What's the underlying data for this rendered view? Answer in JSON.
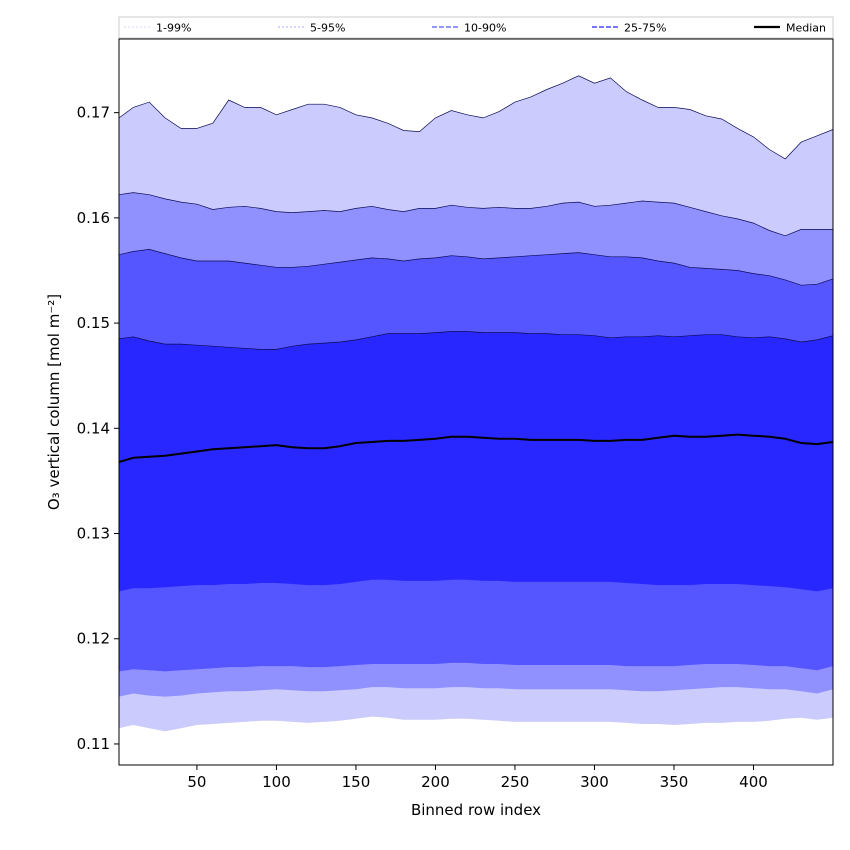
{
  "chart_data": {
    "type": "area",
    "title": "",
    "xlabel": "Binned row index",
    "ylabel": "O₃ vertical column [mol m⁻²]",
    "xlim": [
      1,
      450
    ],
    "ylim": [
      0.108,
      0.177
    ],
    "xticks": [
      50,
      100,
      150,
      200,
      250,
      300,
      350,
      400
    ],
    "yticks": [
      0.11,
      0.12,
      0.13,
      0.14,
      0.15,
      0.16,
      0.17
    ],
    "grid": false,
    "legend_position": "top, outside",
    "x": [
      1,
      10,
      20,
      30,
      40,
      50,
      60,
      70,
      80,
      90,
      100,
      110,
      120,
      130,
      140,
      150,
      160,
      170,
      180,
      190,
      200,
      210,
      220,
      230,
      240,
      250,
      260,
      270,
      280,
      290,
      300,
      310,
      320,
      330,
      340,
      350,
      360,
      370,
      380,
      390,
      400,
      410,
      420,
      430,
      440,
      450
    ],
    "bands": [
      {
        "name": "1-99%",
        "color": "#cccbfe",
        "lower": [
          0.1115,
          0.1118,
          0.1115,
          0.1112,
          0.1115,
          0.1118,
          0.1119,
          0.112,
          0.1121,
          0.1122,
          0.1122,
          0.1121,
          0.112,
          0.1121,
          0.1122,
          0.1124,
          0.1126,
          0.1125,
          0.1123,
          0.1123,
          0.1123,
          0.1124,
          0.1124,
          0.1123,
          0.1122,
          0.1121,
          0.1121,
          0.1121,
          0.1121,
          0.1121,
          0.1121,
          0.1121,
          0.112,
          0.1119,
          0.1119,
          0.1118,
          0.1119,
          0.112,
          0.112,
          0.1121,
          0.1121,
          0.1122,
          0.1124,
          0.1125,
          0.1123,
          0.1125
        ],
        "upper": [
          0.1695,
          0.1705,
          0.171,
          0.1695,
          0.1685,
          0.1685,
          0.169,
          0.1712,
          0.1705,
          0.1705,
          0.1698,
          0.1703,
          0.1708,
          0.1708,
          0.1705,
          0.1698,
          0.1695,
          0.169,
          0.1683,
          0.1682,
          0.1695,
          0.1702,
          0.1698,
          0.1695,
          0.1701,
          0.171,
          0.1715,
          0.1722,
          0.1728,
          0.1735,
          0.1728,
          0.1733,
          0.172,
          0.1712,
          0.1705,
          0.1705,
          0.1703,
          0.1697,
          0.1694,
          0.1685,
          0.1677,
          0.1665,
          0.1656,
          0.1672,
          0.1678,
          0.1684
        ]
      },
      {
        "name": "5-95%",
        "color": "#9091ff",
        "lower": [
          0.1145,
          0.1148,
          0.1146,
          0.1145,
          0.1146,
          0.1148,
          0.1149,
          0.115,
          0.115,
          0.1151,
          0.1152,
          0.1151,
          0.115,
          0.115,
          0.1151,
          0.1152,
          0.1154,
          0.1154,
          0.1153,
          0.1153,
          0.1153,
          0.1154,
          0.1154,
          0.1153,
          0.1153,
          0.1152,
          0.1152,
          0.1152,
          0.1152,
          0.1152,
          0.1152,
          0.1152,
          0.1151,
          0.115,
          0.115,
          0.1151,
          0.1152,
          0.1153,
          0.1154,
          0.1154,
          0.1153,
          0.1152,
          0.1152,
          0.115,
          0.1148,
          0.1152
        ],
        "upper": [
          0.1622,
          0.1624,
          0.1622,
          0.1618,
          0.1615,
          0.1613,
          0.1608,
          0.161,
          0.1611,
          0.1609,
          0.1606,
          0.1605,
          0.1606,
          0.1607,
          0.1606,
          0.1609,
          0.1611,
          0.1608,
          0.1606,
          0.1609,
          0.1609,
          0.1612,
          0.161,
          0.1609,
          0.161,
          0.1609,
          0.1609,
          0.1611,
          0.1614,
          0.1615,
          0.1611,
          0.1612,
          0.1614,
          0.1616,
          0.1615,
          0.1614,
          0.161,
          0.1606,
          0.1602,
          0.1599,
          0.1595,
          0.1588,
          0.1583,
          0.1589,
          0.1589,
          0.1589
        ]
      },
      {
        "name": "10-90%",
        "color": "#5556ff",
        "lower": [
          0.1169,
          0.1171,
          0.117,
          0.1169,
          0.117,
          0.1171,
          0.1172,
          0.1173,
          0.1173,
          0.1174,
          0.1174,
          0.1174,
          0.1173,
          0.1173,
          0.1174,
          0.1175,
          0.1176,
          0.1176,
          0.1176,
          0.1176,
          0.1176,
          0.1177,
          0.1177,
          0.1176,
          0.1176,
          0.1175,
          0.1175,
          0.1175,
          0.1175,
          0.1175,
          0.1175,
          0.1175,
          0.1174,
          0.1174,
          0.1174,
          0.1174,
          0.1175,
          0.1176,
          0.1176,
          0.1176,
          0.1175,
          0.1174,
          0.1174,
          0.1172,
          0.117,
          0.1174
        ],
        "upper": [
          0.1565,
          0.1568,
          0.157,
          0.1566,
          0.1562,
          0.1559,
          0.1559,
          0.1559,
          0.1557,
          0.1555,
          0.1553,
          0.1553,
          0.1554,
          0.1556,
          0.1558,
          0.156,
          0.1562,
          0.1561,
          0.1559,
          0.1561,
          0.1562,
          0.1564,
          0.1563,
          0.1561,
          0.1562,
          0.1563,
          0.1564,
          0.1565,
          0.1566,
          0.1567,
          0.1565,
          0.1563,
          0.1563,
          0.1562,
          0.1559,
          0.1557,
          0.1553,
          0.1552,
          0.1551,
          0.155,
          0.1547,
          0.1545,
          0.1541,
          0.1536,
          0.1537,
          0.1542
        ]
      },
      {
        "name": "25-75%",
        "color": "#2827ff",
        "lower": [
          0.1245,
          0.1248,
          0.1248,
          0.1249,
          0.125,
          0.1251,
          0.1251,
          0.1252,
          0.1252,
          0.1253,
          0.1253,
          0.1252,
          0.1251,
          0.1251,
          0.1252,
          0.1254,
          0.1256,
          0.1256,
          0.1255,
          0.1255,
          0.1255,
          0.1256,
          0.1256,
          0.1255,
          0.1255,
          0.1254,
          0.1254,
          0.1254,
          0.1254,
          0.1254,
          0.1254,
          0.1254,
          0.1253,
          0.1252,
          0.1251,
          0.1251,
          0.1251,
          0.1252,
          0.1252,
          0.1252,
          0.1251,
          0.125,
          0.1249,
          0.1247,
          0.1245,
          0.1248
        ],
        "upper": [
          0.1485,
          0.1487,
          0.1483,
          0.148,
          0.148,
          0.1479,
          0.1478,
          0.1477,
          0.1476,
          0.1475,
          0.1475,
          0.1478,
          0.148,
          0.1481,
          0.1482,
          0.1484,
          0.1487,
          0.149,
          0.149,
          0.149,
          0.1491,
          0.1492,
          0.1492,
          0.1491,
          0.1491,
          0.1491,
          0.149,
          0.149,
          0.1489,
          0.1489,
          0.1488,
          0.1486,
          0.1487,
          0.1487,
          0.1488,
          0.1487,
          0.1488,
          0.1489,
          0.1489,
          0.1487,
          0.1486,
          0.1487,
          0.1485,
          0.1482,
          0.1484,
          0.1488
        ]
      }
    ],
    "median": {
      "name": "Median",
      "color": "#000000",
      "values": [
        0.1368,
        0.1372,
        0.1373,
        0.1374,
        0.1376,
        0.1378,
        0.138,
        0.1381,
        0.1382,
        0.1383,
        0.1384,
        0.1382,
        0.1381,
        0.1381,
        0.1383,
        0.1386,
        0.1387,
        0.1388,
        0.1388,
        0.1389,
        0.139,
        0.1392,
        0.1392,
        0.1391,
        0.139,
        0.139,
        0.1389,
        0.1389,
        0.1389,
        0.1389,
        0.1388,
        0.1388,
        0.1389,
        0.1389,
        0.1391,
        0.1393,
        0.1392,
        0.1392,
        0.1393,
        0.1394,
        0.1393,
        0.1392,
        0.139,
        0.1386,
        0.1385,
        0.1387
      ]
    },
    "legend": [
      {
        "label": "1-99%",
        "color": "#cccbfe",
        "dash": "2,2",
        "width": 0.8
      },
      {
        "label": "5-95%",
        "color": "#9091ff",
        "dash": "2,2",
        "width": 0.8
      },
      {
        "label": "10-90%",
        "color": "#5556ff",
        "dash": "5,2",
        "width": 1.2
      },
      {
        "label": "25-75%",
        "color": "#2827ff",
        "dash": "5,2",
        "width": 1.2
      },
      {
        "label": "Median",
        "color": "#000000",
        "dash": "",
        "width": 2.2
      }
    ]
  }
}
